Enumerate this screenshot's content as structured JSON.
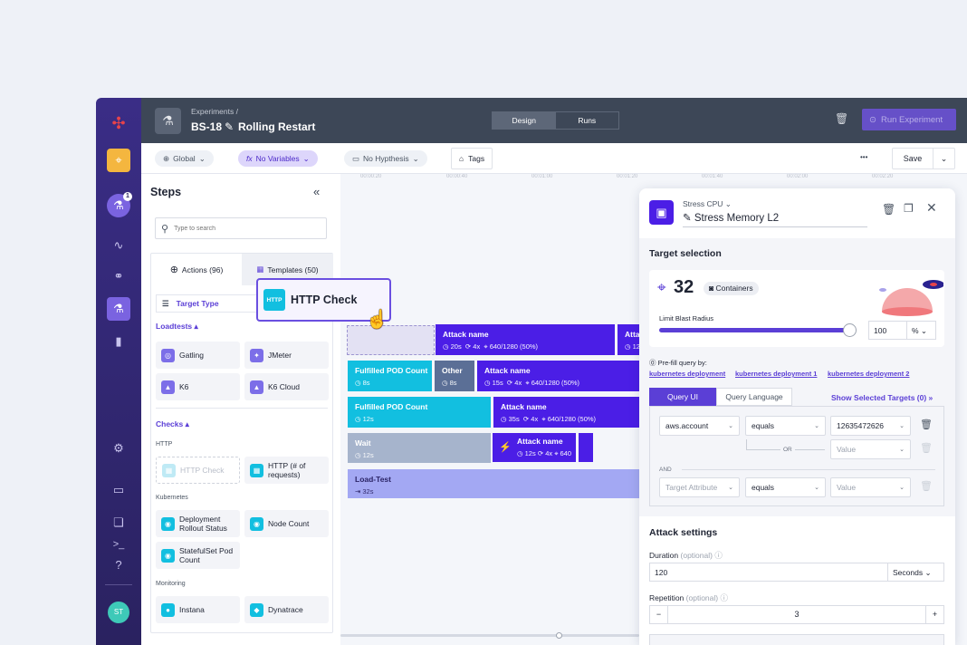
{
  "header": {
    "breadcrumb": "Experiments /",
    "id": "BS-18",
    "name": "Rolling Restart",
    "tabs": [
      {
        "label": "Design",
        "active": true
      },
      {
        "label": "Runs",
        "active": false
      }
    ],
    "run_label": "Run Experiment"
  },
  "toolbar": {
    "global": "Global",
    "variables": "No Variables",
    "hypothesis": "No Hypthesis",
    "tags": "Tags",
    "more": "•••",
    "save": "Save"
  },
  "nav": {
    "badge": "1",
    "avatar": "ST"
  },
  "steps": {
    "title": "Steps",
    "search_placeholder": "Type to search",
    "tabs": [
      {
        "label": "Actions (96)"
      },
      {
        "label": "Templates (50)"
      }
    ],
    "target_type": "Target Type",
    "sections": [
      {
        "label": "Loadtests",
        "items": [
          "Gatling",
          "JMeter",
          "K6",
          "K6 Cloud"
        ]
      },
      {
        "label": "Checks"
      }
    ],
    "groups": {
      "http": "HTTP",
      "kubernetes": "Kubernetes",
      "monitoring": "Monitoring"
    },
    "http_items": [
      "HTTP Check",
      "HTTP (# of requests)"
    ],
    "k8s_items": [
      "Deployment Rollout Status",
      "Node Count",
      "StatefulSet Pod Count"
    ],
    "monitoring_items": [
      "Instana",
      "Dynatrace"
    ],
    "drag_card": "HTTP Check"
  },
  "timeline": {
    "ticks": [
      "00:00:20",
      "00:00:40",
      "00:01:00",
      "00:01:20",
      "00:01:40",
      "00:02:00",
      "00:02:20"
    ],
    "blocks": [
      {
        "name": "Attack name",
        "duration": "20s",
        "reps": "4x",
        "targets": "640/1280 (50%)"
      },
      {
        "name": "Atta",
        "duration": "12"
      },
      {
        "name": "Fulfilled POD Count",
        "duration": "8s"
      },
      {
        "name": "Other",
        "duration": "8s"
      },
      {
        "name": "Attack name",
        "duration": "15s",
        "reps": "4x",
        "targets": "640/1280 (50%)"
      },
      {
        "name": "Fulfilled POD Count",
        "duration": "12s"
      },
      {
        "name": "Attack name",
        "duration": "35s",
        "reps": "4x",
        "targets": "640/1280 (50%)"
      },
      {
        "name": "Wait",
        "duration": "12s"
      },
      {
        "name": "Attack name",
        "duration": "12s",
        "reps": "4x",
        "targets": "640"
      },
      {
        "name": "Load-Test",
        "duration": "32s"
      }
    ]
  },
  "panel": {
    "type": "Stress CPU",
    "name": "Stress Memory L2",
    "target_title": "Target selection",
    "count": "32",
    "count_unit": "Containers",
    "blast_label": "Limit Blast Radius",
    "blast_value": "100",
    "blast_unit": "%",
    "blast_percent": 100,
    "prefill_label": "Pre-fill query by:",
    "prefill_links": [
      "kubernetes deployment",
      "kubernetes deployment 1",
      "kubernetes deployment 2"
    ],
    "query_tabs": [
      "Query UI",
      "Query Language"
    ],
    "show_targets": "Show Selected Targets (0)",
    "rows": [
      {
        "attr": "aws.account",
        "op": "equals",
        "value": "12635472626"
      },
      {
        "value_placeholder": "Value"
      },
      {
        "attr_placeholder": "Target Attribute",
        "op": "equals",
        "value_placeholder": "Value"
      }
    ],
    "or": "OR",
    "and": "AND",
    "attack_title": "Attack settings",
    "duration_label": "Duration",
    "optional": "(optional)",
    "duration_value": "120",
    "duration_unit": "Seconds",
    "repetition_label": "Repetition",
    "repetition_value": "3",
    "minus": "−",
    "plus": "+"
  },
  "colors": {
    "accent": "#4b1ee6",
    "cyan": "#12bfe0",
    "header": "#3d4757",
    "nav": "#3a2d86"
  }
}
